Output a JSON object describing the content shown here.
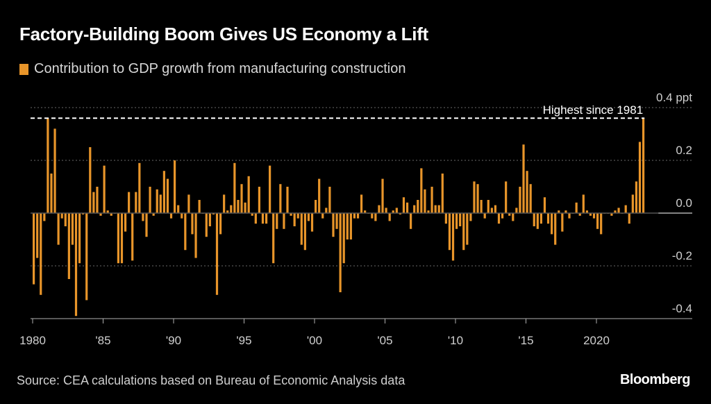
{
  "chart_data": {
    "type": "bar",
    "title": "Factory-Building Boom Gives US Economy a Lift",
    "legend": [
      {
        "label": "Contribution to GDP growth from manufacturing construction",
        "color": "#E8952A"
      }
    ],
    "legend_position": "top-left",
    "xlabel": "",
    "ylabel": "",
    "y_unit_label": "0.4 ppt",
    "ylim": [
      -0.4,
      0.4
    ],
    "yticks": [
      {
        "value": 0.4,
        "label": "0.4 ppt"
      },
      {
        "value": 0.2,
        "label": "0.2"
      },
      {
        "value": 0.0,
        "label": "0.0"
      },
      {
        "value": -0.2,
        "label": "-0.2"
      },
      {
        "value": -0.4,
        "label": "-0.4"
      }
    ],
    "grid": true,
    "x_start": "1980 Q1",
    "x_frequency": "quarterly",
    "xticks": [
      {
        "year": 1980,
        "label": "1980"
      },
      {
        "year": 1985,
        "label": "'85"
      },
      {
        "year": 1990,
        "label": "'90"
      },
      {
        "year": 1995,
        "label": "'95"
      },
      {
        "year": 2000,
        "label": "'00"
      },
      {
        "year": 2005,
        "label": "'05"
      },
      {
        "year": 2010,
        "label": "'10"
      },
      {
        "year": 2015,
        "label": "'15"
      },
      {
        "year": 2020,
        "label": "2020"
      }
    ],
    "annotation": {
      "label": "Highest since 1981",
      "value": 0.36,
      "from": "1981 Q1",
      "to": "2023 Q2"
    },
    "values": [
      -0.27,
      -0.17,
      -0.31,
      -0.03,
      0.36,
      0.15,
      0.32,
      -0.12,
      -0.02,
      -0.05,
      -0.25,
      -0.12,
      -0.39,
      -0.19,
      -0.005,
      -0.33,
      0.25,
      0.08,
      0.1,
      -0.01,
      0.18,
      0.01,
      -0.01,
      0.0,
      -0.19,
      -0.19,
      -0.07,
      0.08,
      -0.18,
      0.08,
      0.19,
      -0.03,
      -0.09,
      0.1,
      -0.01,
      0.09,
      0.07,
      0.16,
      0.13,
      -0.02,
      0.2,
      0.03,
      -0.02,
      -0.14,
      0.07,
      -0.08,
      -0.17,
      0.05,
      0.0,
      -0.09,
      -0.05,
      -0.005,
      -0.31,
      -0.08,
      0.07,
      0.01,
      0.03,
      0.19,
      0.05,
      0.11,
      0.04,
      0.14,
      -0.01,
      -0.04,
      0.1,
      -0.04,
      -0.04,
      0.18,
      -0.19,
      -0.06,
      0.11,
      -0.06,
      0.1,
      -0.01,
      -0.05,
      -0.02,
      -0.12,
      -0.14,
      -0.03,
      -0.07,
      0.05,
      0.13,
      -0.02,
      0.02,
      0.1,
      -0.09,
      -0.06,
      -0.3,
      -0.19,
      -0.1,
      -0.1,
      -0.02,
      -0.02,
      0.07,
      0.01,
      0.0,
      -0.02,
      -0.03,
      0.03,
      0.13,
      0.02,
      -0.03,
      0.01,
      0.02,
      -0.005,
      0.06,
      0.04,
      -0.06,
      0.03,
      0.05,
      0.17,
      0.09,
      0.01,
      0.1,
      0.03,
      0.03,
      0.15,
      -0.04,
      -0.14,
      -0.18,
      -0.06,
      -0.05,
      -0.14,
      -0.12,
      -0.03,
      0.12,
      0.11,
      0.05,
      -0.02,
      0.05,
      0.02,
      0.03,
      -0.04,
      -0.02,
      0.12,
      -0.01,
      -0.03,
      0.02,
      0.1,
      0.26,
      0.16,
      0.11,
      -0.05,
      -0.06,
      -0.04,
      0.06,
      -0.04,
      -0.08,
      -0.12,
      0.01,
      -0.07,
      0.01,
      -0.02,
      0.0,
      0.04,
      -0.01,
      0.07,
      0.01,
      -0.01,
      -0.02,
      -0.06,
      -0.08,
      0.0,
      0.0,
      -0.01,
      0.01,
      0.02,
      0.0,
      0.03,
      -0.04,
      0.07,
      0.12,
      0.27,
      0.36
    ],
    "bar_color": "#E8952A",
    "source": "Source: CEA calculations based on Bureau of Economic Analysis data",
    "brand": "Bloomberg"
  }
}
